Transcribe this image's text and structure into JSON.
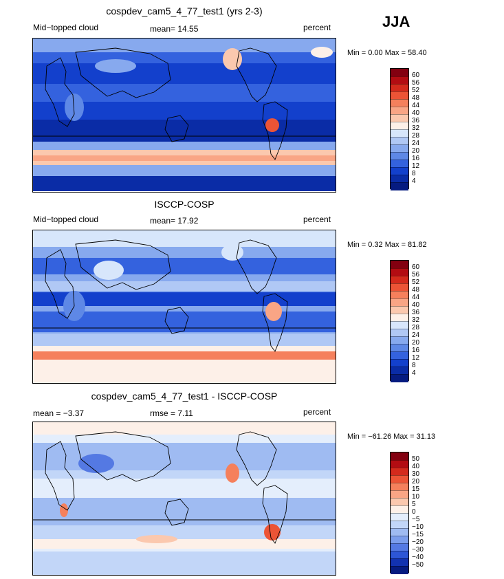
{
  "season": "JJA",
  "panels": [
    {
      "title": "cospdev_cam5_4_77_test1 (yrs 2-3)",
      "left_label": "Mid−topped cloud",
      "center_label": "mean=  14.55",
      "right_label": "percent",
      "minmax": "Min =   0.00 Max =  58.40",
      "scale": "seq",
      "ticks": [
        "60",
        "56",
        "52",
        "48",
        "44",
        "40",
        "36",
        "32",
        "28",
        "24",
        "20",
        "16",
        "12",
        "8",
        "4"
      ]
    },
    {
      "title": "ISCCP-COSP",
      "left_label": "Mid−topped cloud",
      "center_label": "mean=  17.92",
      "right_label": "percent",
      "minmax": "Min =   0.32 Max =  81.82",
      "scale": "seq",
      "ticks": [
        "60",
        "56",
        "52",
        "48",
        "44",
        "40",
        "36",
        "32",
        "28",
        "24",
        "20",
        "16",
        "12",
        "8",
        "4"
      ]
    },
    {
      "title": "cospdev_cam5_4_77_test1 - ISCCP-COSP",
      "left_label": "mean =  −3.37",
      "center_label": "rmse =   7.11",
      "right_label": "percent",
      "minmax": "Min = −61.26 Max =  31.13",
      "scale": "div",
      "ticks": [
        "50",
        "40",
        "30",
        "20",
        "15",
        "10",
        "5",
        "0",
        "−5",
        "−10",
        "−15",
        "−20",
        "−30",
        "−40",
        "−50"
      ]
    }
  ],
  "chart_data": [
    {
      "type": "heatmap",
      "title": "cospdev_cam5_4_77_test1 (yrs 2-3)",
      "variable": "Mid-topped cloud",
      "units": "percent",
      "mean": 14.55,
      "min": 0.0,
      "max": 58.4,
      "colorbar_levels": [
        4,
        8,
        12,
        16,
        20,
        24,
        28,
        32,
        36,
        40,
        44,
        48,
        52,
        56,
        60
      ]
    },
    {
      "type": "heatmap",
      "title": "ISCCP-COSP",
      "variable": "Mid-topped cloud",
      "units": "percent",
      "mean": 17.92,
      "min": 0.32,
      "max": 81.82,
      "colorbar_levels": [
        4,
        8,
        12,
        16,
        20,
        24,
        28,
        32,
        36,
        40,
        44,
        48,
        52,
        56,
        60
      ]
    },
    {
      "type": "heatmap",
      "title": "cospdev_cam5_4_77_test1 - ISCCP-COSP",
      "units": "percent",
      "mean": -3.37,
      "rmse": 7.11,
      "min": -61.26,
      "max": 31.13,
      "colorbar_levels": [
        -50,
        -40,
        -30,
        -20,
        -15,
        -10,
        -5,
        0,
        5,
        10,
        15,
        20,
        30,
        40,
        50
      ]
    }
  ],
  "colors": {
    "seq": [
      "#830010",
      "#b30c12",
      "#d42a1c",
      "#ec5436",
      "#f5805c",
      "#f9a585",
      "#fbc8ae",
      "#fdf0e8",
      "#d7e6fb",
      "#b0c8f5",
      "#87a9ee",
      "#5e88e6",
      "#3462de",
      "#1340cc",
      "#0a2ca6",
      "#061b80"
    ],
    "div": [
      "#830010",
      "#b30c12",
      "#d42a1c",
      "#ec5436",
      "#f5805c",
      "#f9a585",
      "#fbc8ae",
      "#fdf0e8",
      "#e4eefc",
      "#c2d6f8",
      "#9fbbf2",
      "#7b9dec",
      "#5479e3",
      "#2d56d6",
      "#1232b0",
      "#061b80"
    ]
  }
}
